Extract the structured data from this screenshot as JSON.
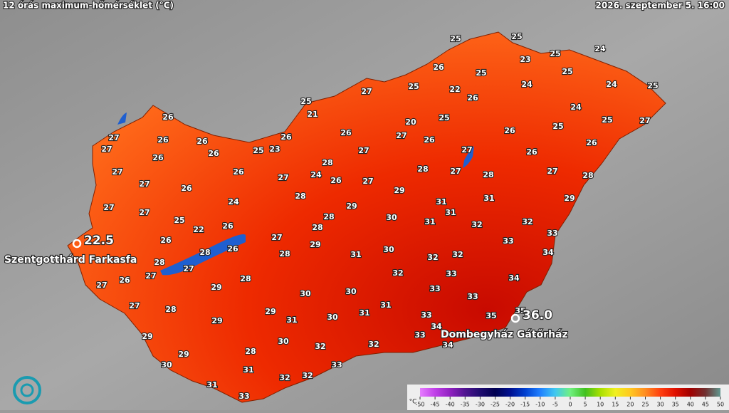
{
  "header": {
    "title": "12 órás maximum-hőmérséklet (°C)",
    "timestamp": "2026. szeptember 5. 16:00"
  },
  "map": {
    "values": [
      25,
      25,
      25,
      24,
      23,
      26,
      25,
      25,
      25,
      22,
      26,
      24,
      24,
      25,
      27,
      25,
      21,
      24,
      25,
      27,
      26,
      20,
      25,
      25,
      26,
      26,
      27,
      26,
      26,
      27,
      27,
      26,
      26,
      26,
      23,
      25,
      26,
      27,
      27,
      26,
      26,
      28,
      28,
      27,
      28,
      27,
      28,
      26,
      27,
      24,
      26,
      27,
      27,
      27,
      26,
      29,
      28,
      24,
      27,
      31,
      31,
      29,
      29,
      31,
      27,
      25,
      28,
      30,
      31,
      32,
      32,
      22,
      26,
      33,
      26,
      27,
      28,
      29,
      33,
      28,
      26,
      28,
      30,
      32,
      32,
      34,
      28,
      27,
      31,
      27,
      32,
      33,
      26,
      27,
      28,
      34,
      33,
      29,
      30,
      30,
      33,
      27,
      28,
      29,
      31,
      31,
      31,
      30,
      35,
      33,
      29,
      35,
      34,
      33,
      29,
      30,
      32,
      32,
      34,
      29,
      28,
      30,
      33,
      31,
      32,
      32,
      31,
      33
    ],
    "stations": [
      {
        "name": "Szentgotthárd Farkasfa",
        "value": "22.5"
      },
      {
        "name": "Dombegyház Gátőrház",
        "value": "36.0"
      }
    ]
  },
  "legend": {
    "unit": "°C",
    "ticks": [
      -50,
      -45,
      -40,
      -35,
      -30,
      -25,
      -20,
      -15,
      -10,
      -5,
      0,
      5,
      10,
      15,
      20,
      25,
      30,
      35,
      40,
      45,
      50
    ],
    "colors": [
      "#e67cff",
      "#c040e8",
      "#9020c0",
      "#501490",
      "#200c70",
      "#000050",
      "#001090",
      "#0040d0",
      "#2080ff",
      "#40c8f0",
      "#70f080",
      "#40c020",
      "#a8e000",
      "#f0f020",
      "#ffc820",
      "#ff8c20",
      "#ff4010",
      "#e01000",
      "#a00000",
      "#703030",
      "#609890"
    ]
  }
}
